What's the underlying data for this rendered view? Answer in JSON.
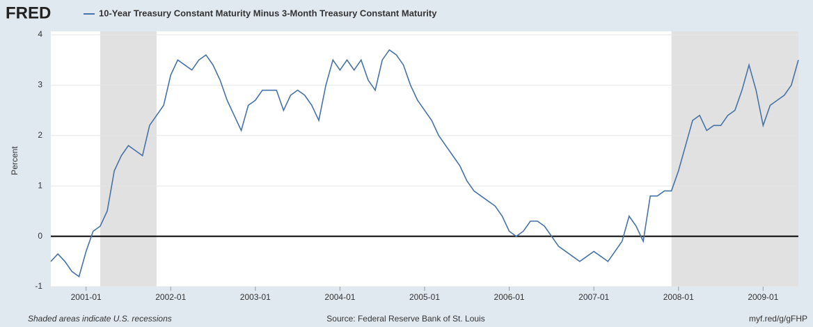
{
  "chart_data": {
    "type": "line",
    "brand": "FRED",
    "title": "10-Year Treasury Constant Maturity Minus 3-Month Treasury Constant Maturity",
    "y_label": "Percent",
    "note": "Shaded areas indicate U.S. recessions",
    "source": "Source: Federal Reserve Bank of St. Louis",
    "link": "myf.red/g/gFHP",
    "x": [
      "2000-08",
      "2000-09",
      "2000-10",
      "2000-11",
      "2000-12",
      "2001-01",
      "2001-02",
      "2001-03",
      "2001-04",
      "2001-05",
      "2001-06",
      "2001-07",
      "2001-08",
      "2001-09",
      "2001-10",
      "2001-11",
      "2001-12",
      "2002-01",
      "2002-02",
      "2002-03",
      "2002-04",
      "2002-05",
      "2002-06",
      "2002-07",
      "2002-08",
      "2002-09",
      "2002-10",
      "2002-11",
      "2002-12",
      "2003-01",
      "2003-02",
      "2003-03",
      "2003-04",
      "2003-05",
      "2003-06",
      "2003-07",
      "2003-08",
      "2003-09",
      "2003-10",
      "2003-11",
      "2003-12",
      "2004-01",
      "2004-02",
      "2004-03",
      "2004-04",
      "2004-05",
      "2004-06",
      "2004-07",
      "2004-08",
      "2004-09",
      "2004-10",
      "2004-11",
      "2004-12",
      "2005-01",
      "2005-02",
      "2005-03",
      "2005-04",
      "2005-05",
      "2005-06",
      "2005-07",
      "2005-08",
      "2005-09",
      "2005-10",
      "2005-11",
      "2005-12",
      "2006-01",
      "2006-02",
      "2006-03",
      "2006-04",
      "2006-05",
      "2006-06",
      "2006-07",
      "2006-08",
      "2006-09",
      "2006-10",
      "2006-11",
      "2006-12",
      "2007-01",
      "2007-02",
      "2007-03",
      "2007-04",
      "2007-05",
      "2007-06",
      "2007-07",
      "2007-08",
      "2007-09",
      "2007-10",
      "2007-11",
      "2007-12",
      "2008-01",
      "2008-02",
      "2008-03",
      "2008-04",
      "2008-05",
      "2008-06",
      "2008-07",
      "2008-08",
      "2008-09",
      "2008-10",
      "2008-11",
      "2008-12",
      "2009-01",
      "2009-02",
      "2009-03",
      "2009-04",
      "2009-05",
      "2009-06"
    ],
    "series": [
      {
        "name": "10-Year Treasury Constant Maturity Minus 3-Month Treasury Constant Maturity",
        "color": "#4572a7",
        "values": [
          -0.5,
          -0.35,
          -0.5,
          -0.7,
          -0.8,
          -0.3,
          0.1,
          0.2,
          0.5,
          1.3,
          1.6,
          1.8,
          1.7,
          1.6,
          2.2,
          2.4,
          2.6,
          3.2,
          3.5,
          3.4,
          3.3,
          3.5,
          3.6,
          3.4,
          3.1,
          2.7,
          2.4,
          2.1,
          2.6,
          2.7,
          2.9,
          2.9,
          2.9,
          2.5,
          2.8,
          2.9,
          2.8,
          2.6,
          2.3,
          3.0,
          3.5,
          3.3,
          3.5,
          3.3,
          3.5,
          3.1,
          2.9,
          3.5,
          3.7,
          3.6,
          3.4,
          3.0,
          2.7,
          2.5,
          2.3,
          2.0,
          1.8,
          1.6,
          1.4,
          1.1,
          0.9,
          0.8,
          0.7,
          0.6,
          0.4,
          0.1,
          0.0,
          0.1,
          0.3,
          0.3,
          0.2,
          0.0,
          -0.2,
          -0.3,
          -0.4,
          -0.5,
          -0.4,
          -0.3,
          -0.4,
          -0.5,
          -0.3,
          -0.1,
          0.4,
          0.2,
          -0.1,
          0.8,
          0.8,
          0.9,
          0.9,
          1.3,
          1.8,
          2.3,
          2.4,
          2.1,
          2.2,
          2.2,
          2.4,
          2.5,
          2.9,
          3.4,
          2.9,
          2.2,
          2.6,
          2.7,
          2.8,
          3.0,
          3.5
        ]
      }
    ],
    "recessions": [
      [
        "2001-03",
        "2001-11"
      ],
      [
        "2007-12",
        "2009-06"
      ]
    ],
    "xlim": [
      "2000-08",
      "2009-06"
    ],
    "xticks": [
      "2001-01",
      "2002-01",
      "2003-01",
      "2004-01",
      "2005-01",
      "2006-01",
      "2007-01",
      "2008-01",
      "2009-01"
    ],
    "ylim": [
      -1,
      4
    ],
    "yticks": [
      -1,
      0,
      1,
      2,
      3,
      4
    ],
    "grid": true
  }
}
